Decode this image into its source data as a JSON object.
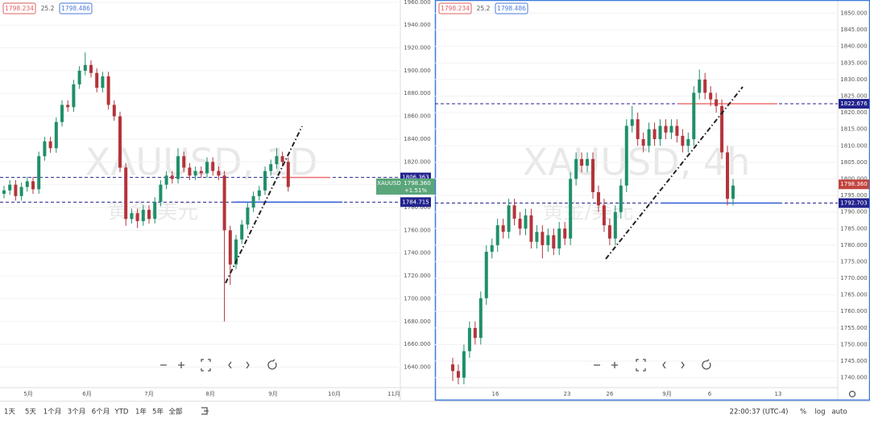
{
  "chart_data": [
    {
      "type": "candlestick",
      "title": "XAUUSD, 1D",
      "subtitle": "黄金/美元",
      "header_labels": [
        "1798.234",
        "25.2",
        "1798.486"
      ],
      "up_color": "#1f8f6a",
      "down_color": "#b3343a",
      "grid": true,
      "ylim": [
        1622,
        1962
      ],
      "yticks": [
        {
          "value": 1640,
          "label": "1640.000"
        },
        {
          "value": 1660,
          "label": "1660.000"
        },
        {
          "value": 1680,
          "label": "1680.000"
        },
        {
          "value": 1700,
          "label": "1700.000"
        },
        {
          "value": 1720,
          "label": "1720.000"
        },
        {
          "value": 1740,
          "label": "1740.000"
        },
        {
          "value": 1760,
          "label": "1760.000"
        },
        {
          "value": 1780,
          "label": "1780.000"
        },
        {
          "value": 1800,
          "label": "1800.000"
        },
        {
          "value": 1820,
          "label": "1820.000"
        },
        {
          "value": 1840,
          "label": "1840.000"
        },
        {
          "value": 1860,
          "label": "1860.000"
        },
        {
          "value": 1880,
          "label": "1880.000"
        },
        {
          "value": 1900,
          "label": "1900.000"
        },
        {
          "value": 1920,
          "label": "1920.000"
        },
        {
          "value": 1940,
          "label": "1940.000"
        },
        {
          "value": 1960,
          "label": "1960.000"
        }
      ],
      "x_labels": [
        "5月",
        "6月",
        "7月",
        "8月",
        "9月",
        "10月",
        "11月"
      ],
      "ohlc": [
        [
          1792,
          1799,
          1788,
          1795
        ],
        [
          1795,
          1804,
          1791,
          1800
        ],
        [
          1800,
          1804,
          1786,
          1790
        ],
        [
          1790,
          1802,
          1786,
          1798
        ],
        [
          1798,
          1807,
          1794,
          1803
        ],
        [
          1803,
          1807,
          1792,
          1796
        ],
        [
          1796,
          1829,
          1792,
          1825
        ],
        [
          1825,
          1842,
          1821,
          1838
        ],
        [
          1838,
          1842,
          1828,
          1832
        ],
        [
          1832,
          1859,
          1828,
          1855
        ],
        [
          1855,
          1874,
          1851,
          1870
        ],
        [
          1870,
          1874,
          1864,
          1868
        ],
        [
          1868,
          1892,
          1864,
          1888
        ],
        [
          1888,
          1904,
          1884,
          1900
        ],
        [
          1900,
          1916,
          1896,
          1905
        ],
        [
          1905,
          1909,
          1894,
          1898
        ],
        [
          1898,
          1902,
          1881,
          1885
        ],
        [
          1885,
          1899,
          1881,
          1895
        ],
        [
          1895,
          1899,
          1866,
          1870
        ],
        [
          1870,
          1874,
          1856,
          1860
        ],
        [
          1860,
          1864,
          1811,
          1815
        ],
        [
          1815,
          1819,
          1764,
          1770
        ],
        [
          1770,
          1779,
          1766,
          1775
        ],
        [
          1775,
          1779,
          1762,
          1768
        ],
        [
          1768,
          1782,
          1764,
          1778
        ],
        [
          1778,
          1782,
          1766,
          1770
        ],
        [
          1770,
          1789,
          1766,
          1785
        ],
        [
          1785,
          1804,
          1781,
          1800
        ],
        [
          1800,
          1812,
          1796,
          1808
        ],
        [
          1808,
          1812,
          1801,
          1805
        ],
        [
          1805,
          1832,
          1801,
          1825
        ],
        [
          1825,
          1829,
          1811,
          1815
        ],
        [
          1815,
          1819,
          1804,
          1808
        ],
        [
          1808,
          1816,
          1804,
          1812
        ],
        [
          1812,
          1816,
          1806,
          1810
        ],
        [
          1810,
          1824,
          1806,
          1820
        ],
        [
          1820,
          1824,
          1808,
          1812
        ],
        [
          1812,
          1816,
          1804,
          1808
        ],
        [
          1808,
          1812,
          1680,
          1760
        ],
        [
          1760,
          1764,
          1712,
          1730
        ],
        [
          1730,
          1756,
          1726,
          1752
        ],
        [
          1752,
          1769,
          1748,
          1765
        ],
        [
          1765,
          1784,
          1761,
          1780
        ],
        [
          1780,
          1794,
          1776,
          1790
        ],
        [
          1790,
          1799,
          1786,
          1795
        ],
        [
          1795,
          1816,
          1791,
          1812
        ],
        [
          1812,
          1822,
          1808,
          1818
        ],
        [
          1818,
          1832,
          1814,
          1825
        ],
        [
          1825,
          1829,
          1816,
          1820
        ],
        [
          1820,
          1824,
          1794,
          1798
        ]
      ],
      "levels": [
        {
          "value": 1806.363,
          "color": "#23238e",
          "accent": "#f07070"
        },
        {
          "value": 1784.715,
          "color": "#23238e",
          "accent": "#2f5bd8"
        }
      ],
      "price_tag": {
        "symbol": "XAUUSD",
        "value": 1798.36,
        "label": "1798.360",
        "change": "+1.51%",
        "color": "#5aa57a"
      }
    },
    {
      "type": "candlestick",
      "title": "XAUUSD, 4h",
      "subtitle": "黄金/美元",
      "header_labels": [
        "1798.234",
        "25.2",
        "1798.486"
      ],
      "up_color": "#1f8f6a",
      "down_color": "#b3343a",
      "grid": true,
      "ylim": [
        1737,
        1854
      ],
      "yticks": [
        {
          "value": 1740,
          "label": "1740.000"
        },
        {
          "value": 1745,
          "label": "1745.000"
        },
        {
          "value": 1750,
          "label": "1750.000"
        },
        {
          "value": 1755,
          "label": "1755.000"
        },
        {
          "value": 1760,
          "label": "1760.000"
        },
        {
          "value": 1765,
          "label": "1765.000"
        },
        {
          "value": 1770,
          "label": "1770.000"
        },
        {
          "value": 1775,
          "label": "1775.000"
        },
        {
          "value": 1780,
          "label": "1780.000"
        },
        {
          "value": 1785,
          "label": "1785.000"
        },
        {
          "value": 1790,
          "label": "1790.000"
        },
        {
          "value": 1795,
          "label": "1795.000"
        },
        {
          "value": 1800,
          "label": "1800.000"
        },
        {
          "value": 1805,
          "label": "1805.000"
        },
        {
          "value": 1810,
          "label": "1810.000"
        },
        {
          "value": 1815,
          "label": "1815.000"
        },
        {
          "value": 1820,
          "label": "1820.000"
        },
        {
          "value": 1825,
          "label": "1825.000"
        },
        {
          "value": 1830,
          "label": "1830.000"
        },
        {
          "value": 1835,
          "label": "1835.000"
        },
        {
          "value": 1840,
          "label": "1840.000"
        },
        {
          "value": 1845,
          "label": "1845.000"
        },
        {
          "value": 1850,
          "label": "1850.000"
        }
      ],
      "x_labels": [
        "16",
        "23",
        "26",
        "9月",
        "6",
        "13"
      ],
      "ohlc": [
        [
          1744,
          1746,
          1739,
          1742
        ],
        [
          1742,
          1744,
          1738,
          1740
        ],
        [
          1740,
          1750,
          1738,
          1748
        ],
        [
          1748,
          1757,
          1746,
          1755
        ],
        [
          1755,
          1757,
          1750,
          1752
        ],
        [
          1752,
          1766,
          1750,
          1764
        ],
        [
          1764,
          1780,
          1762,
          1778
        ],
        [
          1778,
          1782,
          1776,
          1780
        ],
        [
          1780,
          1788,
          1778,
          1786
        ],
        [
          1786,
          1788,
          1782,
          1784
        ],
        [
          1784,
          1794,
          1782,
          1792
        ],
        [
          1792,
          1794,
          1786,
          1788
        ],
        [
          1788,
          1790,
          1783,
          1785
        ],
        [
          1785,
          1791,
          1783,
          1789
        ],
        [
          1789,
          1791,
          1779,
          1781
        ],
        [
          1781,
          1786,
          1779,
          1784
        ],
        [
          1784,
          1786,
          1776,
          1780
        ],
        [
          1780,
          1785,
          1778,
          1783
        ],
        [
          1783,
          1785,
          1777,
          1779
        ],
        [
          1779,
          1787,
          1777,
          1785
        ],
        [
          1785,
          1787,
          1780,
          1782
        ],
        [
          1782,
          1802,
          1780,
          1800
        ],
        [
          1800,
          1808,
          1798,
          1806
        ],
        [
          1806,
          1808,
          1802,
          1804
        ],
        [
          1804,
          1808,
          1802,
          1806
        ],
        [
          1806,
          1808,
          1794,
          1796
        ],
        [
          1796,
          1798,
          1790,
          1792
        ],
        [
          1792,
          1794,
          1784,
          1786
        ],
        [
          1786,
          1788,
          1780,
          1782
        ],
        [
          1782,
          1792,
          1780,
          1790
        ],
        [
          1790,
          1800,
          1788,
          1798
        ],
        [
          1798,
          1818,
          1796,
          1816
        ],
        [
          1816,
          1822,
          1814,
          1818
        ],
        [
          1818,
          1820,
          1810,
          1812
        ],
        [
          1812,
          1814,
          1808,
          1810
        ],
        [
          1810,
          1817,
          1808,
          1815
        ],
        [
          1815,
          1817,
          1810,
          1812
        ],
        [
          1812,
          1818,
          1810,
          1816
        ],
        [
          1816,
          1818,
          1812,
          1814
        ],
        [
          1814,
          1818,
          1812,
          1816
        ],
        [
          1816,
          1818,
          1811,
          1813
        ],
        [
          1813,
          1815,
          1808,
          1810
        ],
        [
          1810,
          1814,
          1808,
          1812
        ],
        [
          1812,
          1828,
          1810,
          1826
        ],
        [
          1826,
          1833,
          1824,
          1830
        ],
        [
          1830,
          1832,
          1824,
          1826
        ],
        [
          1826,
          1828,
          1822,
          1824
        ],
        [
          1824,
          1826,
          1820,
          1822
        ],
        [
          1822,
          1824,
          1806,
          1808
        ],
        [
          1808,
          1810,
          1792,
          1794
        ],
        [
          1794,
          1800,
          1792,
          1798
        ]
      ],
      "levels": [
        {
          "value": 1822.676,
          "color": "#23238e",
          "accent": "#f07070"
        },
        {
          "value": 1792.703,
          "color": "#23238e",
          "accent": "#2f5bd8"
        }
      ],
      "price_tag": {
        "value": 1798.36,
        "label": "1798.360",
        "color": "#c2453f"
      }
    }
  ],
  "toolbar": {
    "ranges": [
      "1天",
      "5天",
      "1个月",
      "3个月",
      "6个月",
      "YTD",
      "1年",
      "5年",
      "全部"
    ],
    "time": "22:00:37 (UTC-4)",
    "options": [
      "%",
      "log",
      "auto"
    ]
  }
}
